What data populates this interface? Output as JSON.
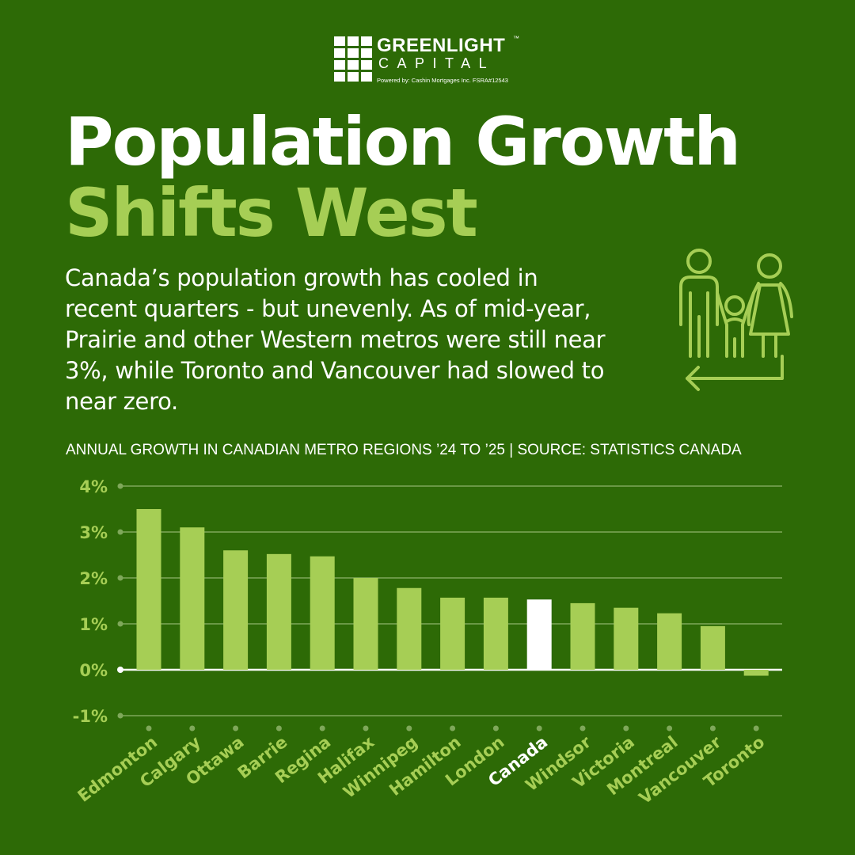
{
  "logo": {
    "name": "GREENLIGHT",
    "tm": "™",
    "sub": "CAPITAL",
    "powered": "Powered by:  Cashin Mortgages Inc.  FSRA#12543"
  },
  "title_line1": "Population Growth",
  "title_line2": "Shifts West",
  "description": "Canada’s population growth has cooled in\nrecent quarters - but unevenly. As of mid-year,\nPrairie and  other Western metros were still near\n3%, while Toronto and Vancouver had slowed to\nnear zero.",
  "chart_subtitle": "ANNUAL GROWTH IN CANADIAN METRO REGIONS ’24 TO ’25 | SOURCE: STATISTICS CANADA",
  "icon": "family-icon",
  "colors": {
    "background": "#2d6a06",
    "bar": "#a6ce55",
    "highlight_bar": "#ffffff",
    "grid": "#7fa85a"
  },
  "chart_data": {
    "type": "bar",
    "categories": [
      "Edmonton",
      "Calgary",
      "Ottawa",
      "Barrie",
      "Regina",
      "Halifax",
      "Winnipeg",
      "Hamilton",
      "London",
      "Canada",
      "Windsor",
      "Victoria",
      "Montreal",
      "Vancouver",
      "Toronto"
    ],
    "values": [
      3.5,
      3.1,
      2.6,
      2.52,
      2.47,
      2.0,
      1.78,
      1.57,
      1.57,
      1.53,
      1.45,
      1.35,
      1.23,
      0.95,
      -0.13
    ],
    "highlight": "Canada",
    "yticks": [
      4,
      3,
      2,
      1,
      0,
      -1
    ],
    "ytick_labels": [
      "4%",
      "3%",
      "2%",
      "1%",
      "0%",
      "-1%"
    ],
    "ylim": [
      -1,
      4
    ],
    "grid": true,
    "title": "",
    "xlabel": "",
    "ylabel": ""
  }
}
